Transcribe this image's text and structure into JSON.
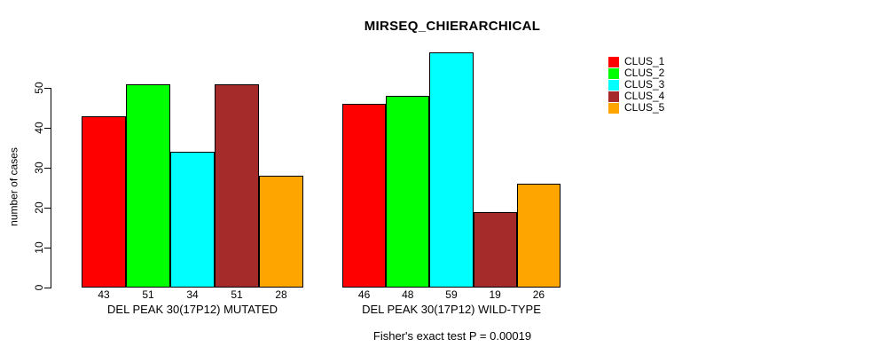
{
  "chart_data": {
    "type": "bar",
    "title": "MIRSEQ_CHIERARCHICAL",
    "ylabel": "number of cases",
    "xlabel": "",
    "ylim": [
      0,
      50
    ],
    "yticks": [
      0,
      10,
      20,
      30,
      40,
      50
    ],
    "grid": false,
    "legend_position": "right",
    "categories": [
      "DEL PEAK 30(17P12) MUTATED",
      "DEL PEAK 30(17P12) WILD-TYPE"
    ],
    "series": [
      {
        "name": "CLUS_1",
        "color": "#FF0000",
        "values": [
          43,
          46
        ]
      },
      {
        "name": "CLUS_2",
        "color": "#00FF00",
        "values": [
          51,
          48
        ]
      },
      {
        "name": "CLUS_3",
        "color": "#00FFFF",
        "values": [
          34,
          59
        ]
      },
      {
        "name": "CLUS_4",
        "color": "#A52A2A",
        "values": [
          51,
          19
        ]
      },
      {
        "name": "CLUS_5",
        "color": "#FFA500",
        "values": [
          28,
          26
        ]
      }
    ],
    "bar_value_labels": [
      [
        43,
        51,
        34,
        51,
        28
      ],
      [
        46,
        48,
        59,
        19,
        26
      ]
    ],
    "annotation": "Fisher's exact test P = 0.00019",
    "colors": {
      "bar_border": "#000000",
      "axis": "#000000",
      "text": "#000000",
      "background": "#FFFFFF"
    }
  }
}
